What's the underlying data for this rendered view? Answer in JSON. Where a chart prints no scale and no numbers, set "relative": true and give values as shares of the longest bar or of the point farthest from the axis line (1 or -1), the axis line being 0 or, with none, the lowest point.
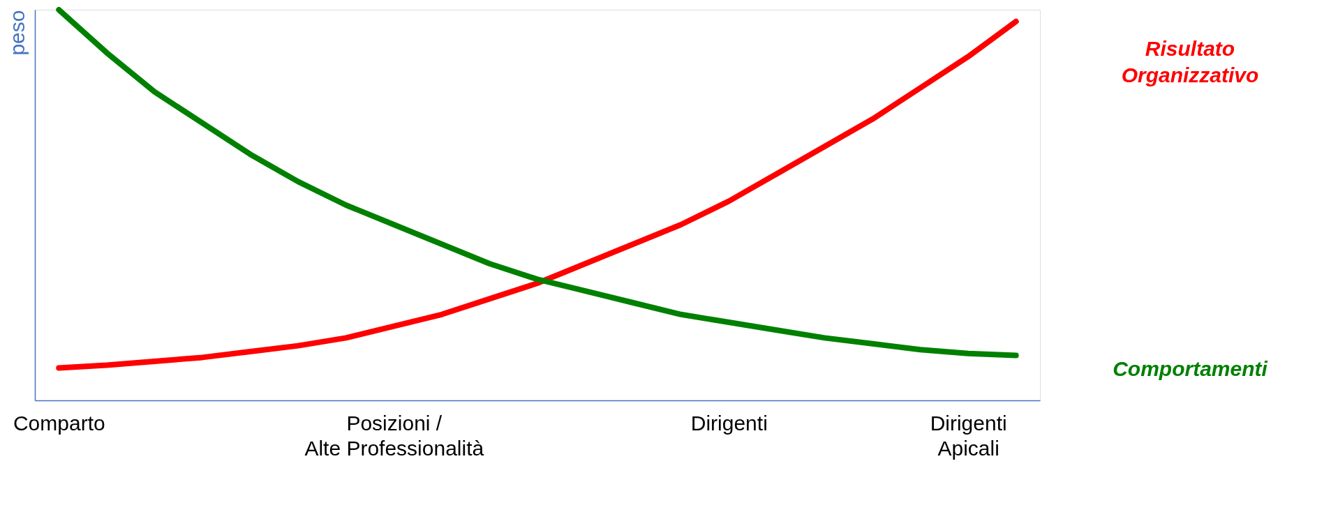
{
  "chart_data": {
    "type": "line",
    "relative": true,
    "ylabel": "peso",
    "grid": false,
    "legend": false,
    "marker": "none",
    "line_style": "solid",
    "categories": [
      "Comparto",
      null,
      null,
      null,
      null,
      null,
      null,
      "Posizioni /\nAlte Professionalità",
      null,
      null,
      null,
      null,
      null,
      null,
      "Dirigenti",
      null,
      null,
      null,
      null,
      "Dirigenti\nApicali",
      null
    ],
    "series": [
      {
        "name": "Risultato Organizzativo",
        "color": "#ff0000",
        "values": [
          0.083,
          0.09,
          0.1,
          0.11,
          0.125,
          0.14,
          0.16,
          0.19,
          0.22,
          0.26,
          0.3,
          0.35,
          0.4,
          0.45,
          0.51,
          0.58,
          0.65,
          0.72,
          0.8,
          0.88,
          0.97
        ]
      },
      {
        "name": "Comportamenti",
        "color": "#008000",
        "values": [
          1.0,
          0.89,
          0.79,
          0.71,
          0.63,
          0.56,
          0.5,
          0.45,
          0.4,
          0.35,
          0.31,
          0.28,
          0.25,
          0.22,
          0.2,
          0.18,
          0.16,
          0.145,
          0.13,
          0.12,
          0.115
        ]
      }
    ]
  }
}
